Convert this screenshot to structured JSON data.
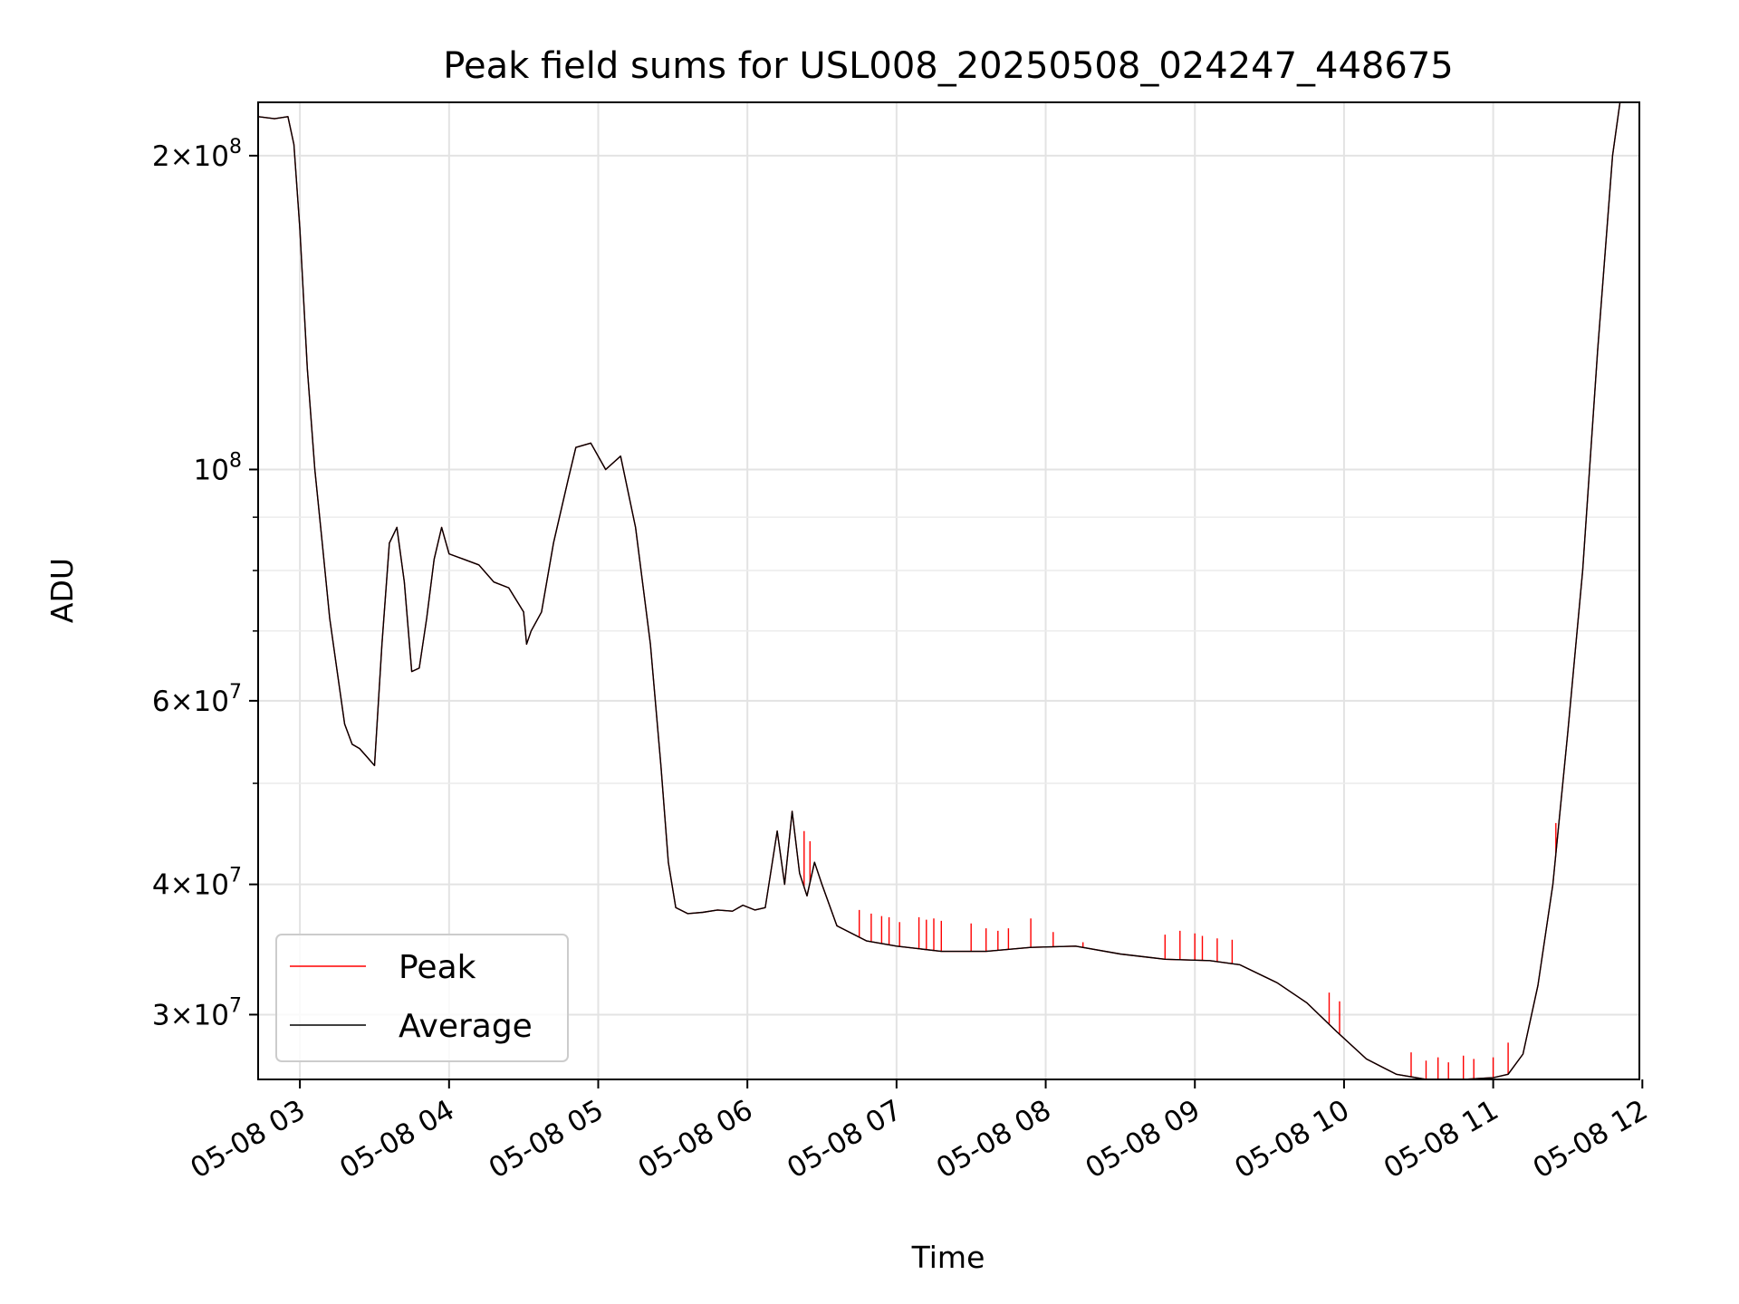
{
  "chart_data": {
    "type": "line",
    "title": "Peak field sums for USL008_20250508_024247_448675",
    "xlabel": "Time",
    "ylabel": "ADU",
    "y_scale": "log",
    "ylim": [
      26000000,
      225000000
    ],
    "xlim_hours": [
      2.72,
      11.98
    ],
    "grid": true,
    "legend_position": "lower-left",
    "x_ticks": [
      {
        "hour": 3,
        "label": "05-08 03"
      },
      {
        "hour": 4,
        "label": "05-08 04"
      },
      {
        "hour": 5,
        "label": "05-08 05"
      },
      {
        "hour": 6,
        "label": "05-08 06"
      },
      {
        "hour": 7,
        "label": "05-08 07"
      },
      {
        "hour": 8,
        "label": "05-08 08"
      },
      {
        "hour": 9,
        "label": "05-08 09"
      },
      {
        "hour": 10,
        "label": "05-08 10"
      },
      {
        "hour": 11,
        "label": "05-08 11"
      },
      {
        "hour": 12,
        "label": "05-08 12"
      }
    ],
    "y_major_ticks": [
      {
        "value": 30000000,
        "mantissa": "3",
        "exp": "7"
      },
      {
        "value": 40000000,
        "mantissa": "4",
        "exp": "7"
      },
      {
        "value": 60000000,
        "mantissa": "6",
        "exp": "7"
      },
      {
        "value": 100000000,
        "mantissa": "",
        "exp": "8"
      },
      {
        "value": 200000000,
        "mantissa": "2",
        "exp": "8"
      }
    ],
    "y_minor_ticks": [
      50000000,
      70000000,
      80000000,
      90000000
    ],
    "series": [
      {
        "name": "Peak",
        "color": "#ff0000"
      },
      {
        "name": "Average",
        "color": "#000000"
      }
    ],
    "average_points": [
      [
        2.72,
        218000000
      ],
      [
        2.83,
        217000000
      ],
      [
        2.92,
        218000000
      ],
      [
        2.96,
        205000000
      ],
      [
        3.0,
        170000000
      ],
      [
        3.05,
        125000000
      ],
      [
        3.1,
        100000000
      ],
      [
        3.15,
        85000000
      ],
      [
        3.2,
        72000000
      ],
      [
        3.25,
        64000000
      ],
      [
        3.3,
        57000000
      ],
      [
        3.35,
        54500000
      ],
      [
        3.4,
        54000000
      ],
      [
        3.45,
        53000000
      ],
      [
        3.5,
        52000000
      ],
      [
        3.55,
        68000000
      ],
      [
        3.6,
        85000000
      ],
      [
        3.65,
        88000000
      ],
      [
        3.7,
        78000000
      ],
      [
        3.75,
        64000000
      ],
      [
        3.8,
        64500000
      ],
      [
        3.85,
        72000000
      ],
      [
        3.9,
        82000000
      ],
      [
        3.95,
        88000000
      ],
      [
        4.0,
        83000000
      ],
      [
        4.1,
        82000000
      ],
      [
        4.2,
        81000000
      ],
      [
        4.3,
        78000000
      ],
      [
        4.4,
        77000000
      ],
      [
        4.5,
        73000000
      ],
      [
        4.52,
        68000000
      ],
      [
        4.55,
        70000000
      ],
      [
        4.62,
        73000000
      ],
      [
        4.7,
        85000000
      ],
      [
        4.8,
        98000000
      ],
      [
        4.85,
        105000000
      ],
      [
        4.95,
        106000000
      ],
      [
        5.05,
        100000000
      ],
      [
        5.15,
        103000000
      ],
      [
        5.25,
        88000000
      ],
      [
        5.35,
        68000000
      ],
      [
        5.42,
        52000000
      ],
      [
        5.47,
        42000000
      ],
      [
        5.52,
        38000000
      ],
      [
        5.6,
        37500000
      ],
      [
        5.7,
        37600000
      ],
      [
        5.8,
        37800000
      ],
      [
        5.9,
        37700000
      ],
      [
        5.97,
        38200000
      ],
      [
        6.05,
        37800000
      ],
      [
        6.12,
        38000000
      ],
      [
        6.2,
        45000000
      ],
      [
        6.25,
        40000000
      ],
      [
        6.3,
        47000000
      ],
      [
        6.35,
        41000000
      ],
      [
        6.4,
        39000000
      ],
      [
        6.45,
        42000000
      ],
      [
        6.5,
        40000000
      ],
      [
        6.6,
        36500000
      ],
      [
        6.8,
        35300000
      ],
      [
        7.0,
        34900000
      ],
      [
        7.3,
        34500000
      ],
      [
        7.6,
        34500000
      ],
      [
        7.9,
        34800000
      ],
      [
        8.2,
        34900000
      ],
      [
        8.5,
        34300000
      ],
      [
        8.8,
        33900000
      ],
      [
        9.1,
        33800000
      ],
      [
        9.3,
        33500000
      ],
      [
        9.55,
        32200000
      ],
      [
        9.75,
        30800000
      ],
      [
        9.95,
        28900000
      ],
      [
        10.15,
        27200000
      ],
      [
        10.35,
        26300000
      ],
      [
        10.55,
        26000000
      ],
      [
        10.8,
        26000000
      ],
      [
        11.0,
        26100000
      ],
      [
        11.1,
        26300000
      ],
      [
        11.2,
        27500000
      ],
      [
        11.3,
        32000000
      ],
      [
        11.4,
        40000000
      ],
      [
        11.5,
        56000000
      ],
      [
        11.6,
        80000000
      ],
      [
        11.7,
        130000000
      ],
      [
        11.8,
        200000000
      ],
      [
        11.85,
        225000000
      ]
    ],
    "peak_spikes": [
      [
        6.38,
        45000000
      ],
      [
        6.42,
        44000000
      ],
      [
        6.6,
        36600000
      ],
      [
        6.75,
        37800000
      ],
      [
        6.83,
        37500000
      ],
      [
        6.9,
        37300000
      ],
      [
        6.95,
        37200000
      ],
      [
        7.02,
        36800000
      ],
      [
        7.15,
        37200000
      ],
      [
        7.2,
        37000000
      ],
      [
        7.25,
        37100000
      ],
      [
        7.3,
        36900000
      ],
      [
        7.5,
        36700000
      ],
      [
        7.6,
        36300000
      ],
      [
        7.68,
        36100000
      ],
      [
        7.75,
        36300000
      ],
      [
        7.9,
        37100000
      ],
      [
        8.05,
        36000000
      ],
      [
        8.25,
        35200000
      ],
      [
        8.8,
        35800000
      ],
      [
        8.9,
        36100000
      ],
      [
        9.0,
        35900000
      ],
      [
        9.05,
        35700000
      ],
      [
        9.15,
        35500000
      ],
      [
        9.25,
        35400000
      ],
      [
        9.9,
        31500000
      ],
      [
        9.97,
        30900000
      ],
      [
        10.45,
        27600000
      ],
      [
        10.55,
        27100000
      ],
      [
        10.63,
        27300000
      ],
      [
        10.7,
        27000000
      ],
      [
        10.8,
        27400000
      ],
      [
        10.87,
        27200000
      ],
      [
        11.0,
        27300000
      ],
      [
        11.1,
        28200000
      ],
      [
        11.42,
        45800000
      ]
    ]
  }
}
